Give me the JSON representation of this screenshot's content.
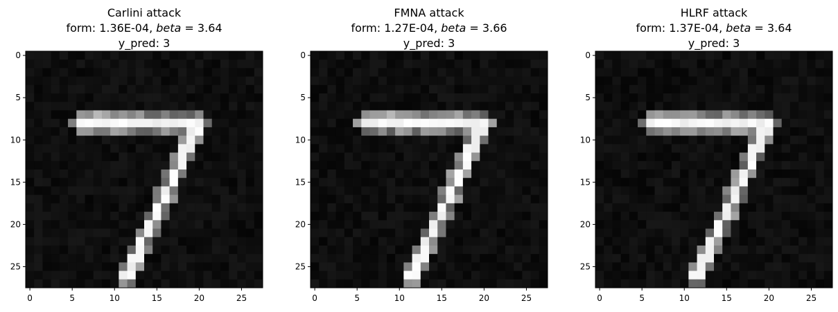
{
  "chart_data": [
    {
      "type": "heatmap",
      "colormap": "gray",
      "title_lines": [
        "Carlini attack",
        "form: 1.36E-04, beta = 3.64",
        "y_pred: 3"
      ],
      "xticks": [
        0,
        5,
        10,
        15,
        20,
        25
      ],
      "yticks": [
        0,
        5,
        10,
        15,
        20,
        25
      ],
      "xlim": [
        -0.5,
        27.5
      ],
      "ylim": [
        27.5,
        -0.5
      ],
      "image_size": [
        28,
        28
      ],
      "content": "adversarial MNIST digit 7 (white stroke on black background)",
      "form": "1.36E-04",
      "beta": 3.64,
      "y_pred": 3
    },
    {
      "type": "heatmap",
      "colormap": "gray",
      "title_lines": [
        "FMNA attack",
        "form: 1.27E-04, beta = 3.66",
        "y_pred: 3"
      ],
      "xticks": [
        0,
        5,
        10,
        15,
        20,
        25
      ],
      "yticks": [
        0,
        5,
        10,
        15,
        20,
        25
      ],
      "xlim": [
        -0.5,
        27.5
      ],
      "ylim": [
        27.5,
        -0.5
      ],
      "image_size": [
        28,
        28
      ],
      "content": "adversarial MNIST digit 7 (white stroke on black background)",
      "form": "1.27E-04",
      "beta": 3.66,
      "y_pred": 3
    },
    {
      "type": "heatmap",
      "colormap": "gray",
      "title_lines": [
        "HLRF attack",
        "form: 1.37E-04, beta = 3.64",
        "y_pred: 3"
      ],
      "xticks": [
        0,
        5,
        10,
        15,
        20,
        25
      ],
      "yticks": [
        0,
        5,
        10,
        15,
        20,
        25
      ],
      "xlim": [
        -0.5,
        27.5
      ],
      "ylim": [
        27.5,
        -0.5
      ],
      "image_size": [
        28,
        28
      ],
      "content": "adversarial MNIST digit 7 (white stroke on black background)",
      "form": "1.37E-04",
      "beta": 3.64,
      "y_pred": 3
    }
  ]
}
